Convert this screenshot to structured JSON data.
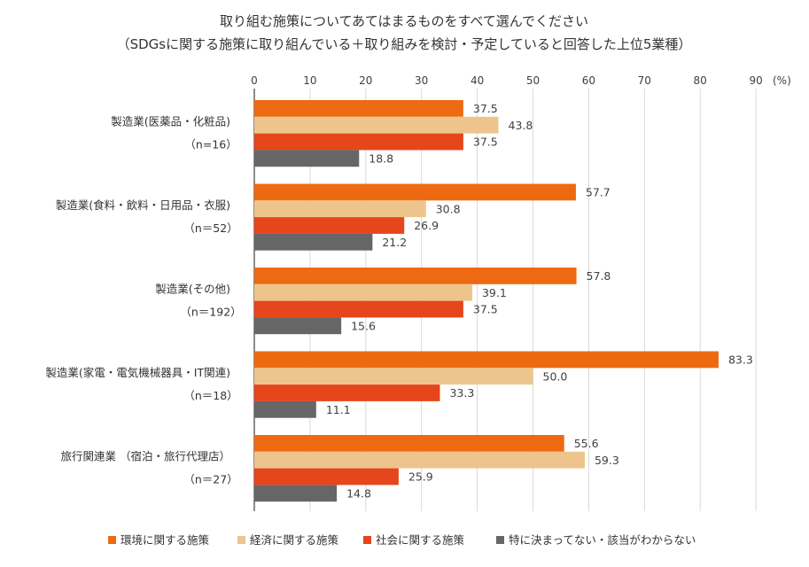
{
  "chart_data": {
    "type": "bar",
    "orientation": "horizontal",
    "title": "取り組む施策についてあてはまるものをすべて選んでください",
    "subtitle": "（SDGsに関する施策に取り組んでいる＋取り組みを検討・予定していると回答した上位5業種）",
    "unit_label": "(%)",
    "xlim": [
      0,
      90
    ],
    "ticks": [
      0,
      10,
      20,
      30,
      40,
      50,
      60,
      70,
      80,
      90
    ],
    "categories": [
      {
        "label": "製造業(医薬品・化粧品)",
        "n": "（n=16）"
      },
      {
        "label": "製造業(食料・飲料・日用品・衣服)",
        "n": "（n＝52）"
      },
      {
        "label": "製造業(その他)",
        "n": "（n＝192）"
      },
      {
        "label": "製造業(家電・電気機械器具・IT関連)",
        "n": "（n＝18）"
      },
      {
        "label": "旅行関連業 （宿泊・旅行代理店）",
        "n": "（n＝27）"
      }
    ],
    "series": [
      {
        "name": "環境に関する施策",
        "color": "#ED6A12",
        "values": [
          37.5,
          57.7,
          57.8,
          83.3,
          55.6
        ]
      },
      {
        "name": "経済に関する施策",
        "color": "#EDC58C",
        "values": [
          43.8,
          30.8,
          39.1,
          50.0,
          59.3
        ]
      },
      {
        "name": "社会に関する施策",
        "color": "#E5461B",
        "values": [
          37.5,
          26.9,
          37.5,
          33.3,
          25.9
        ]
      },
      {
        "name": "特に決まってない・該当がわからない",
        "color": "#666666",
        "values": [
          18.8,
          21.2,
          15.6,
          11.1,
          14.8
        ]
      }
    ]
  }
}
